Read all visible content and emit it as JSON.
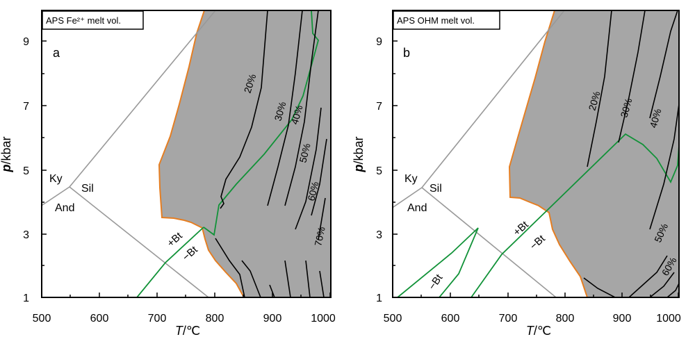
{
  "chart_data": [
    {
      "type": "line",
      "title": "APS Fe²⁺ melt vol.",
      "panel_letter": "a",
      "xlabel_symbol": "T",
      "xlabel_unit": "/℃",
      "ylabel_symbol": "p",
      "ylabel_unit": "/kbar",
      "xlim": [
        500,
        1000
      ],
      "ylim": [
        1,
        10
      ],
      "x_ticks": [
        "500",
        "600",
        "700",
        "800",
        "900",
        "1000"
      ],
      "y_ticks": [
        "1",
        "3",
        "5",
        "7",
        "9"
      ],
      "melt_field_color": "#a6a6a6",
      "solidus_color": "#e57e22",
      "biotite_line_color": "#119238",
      "aluminosilicate_color": "#999999",
      "contour_color": "#000000",
      "phase_labels": [
        "Ky",
        "Sil",
        "And"
      ],
      "biotite_labels": [
        "+Bt",
        "−Bt"
      ],
      "contour_labels": [
        "20%",
        "30%",
        "40%",
        "50%",
        "60%",
        "70%"
      ],
      "series": [
        {
          "points": [
            [
              500,
              3.8
            ],
            [
              550,
              4.4
            ]
          ]
        },
        {
          "points": [
            [
              550,
              4.4
            ],
            [
              790,
              1.0
            ]
          ]
        },
        {
          "points": [
            [
              550,
              4.4
            ],
            [
              795,
              10.0
            ]
          ]
        },
        {
          "points": [
            [
              780,
              10.0
            ],
            [
              770,
              9.3
            ],
            [
              760,
              8.2
            ],
            [
              745,
              7.1
            ],
            [
              730,
              6.0
            ],
            [
              710,
              5.15
            ],
            [
              710,
              4.5
            ],
            [
              712,
              3.5
            ],
            [
              730,
              3.5
            ],
            [
              750,
              3.45
            ],
            [
              765,
              3.35
            ],
            [
              780,
              3.15
            ],
            [
              785,
              2.8
            ],
            [
              790,
              2.4
            ],
            [
              800,
              2.0
            ],
            [
              815,
              1.6
            ],
            [
              830,
              1.25
            ],
            [
              840,
              1.0
            ]
          ]
        },
        {
          "points": [
            [
              665,
              1.0
            ],
            [
              710,
              2.1
            ],
            [
              780,
              3.2
            ]
          ]
        },
        {
          "points": [
            [
              780,
              3.2
            ],
            [
              800,
              2.95
            ],
            [
              800,
              3.8
            ],
            [
              840,
              5.0
            ],
            [
              900,
              6.2
            ],
            [
              950,
              7.5
            ],
            [
              958,
              8.8
            ],
            [
              980,
              9.0
            ],
            [
              975,
              9.3
            ],
            [
              965,
              10.0
            ]
          ]
        },
        {
          "points": [
            [
              800,
              4.0
            ],
            [
              805,
              3.5
            ],
            [
              800,
              2.8
            ],
            [
              810,
              2.0
            ],
            [
              830,
              1.4
            ],
            [
              850,
              1.0
            ]
          ]
        },
        {
          "points": [
            [
              812,
              3.8
            ],
            [
              840,
              5.5
            ],
            [
              858,
              7.3
            ],
            [
              880,
              10.0
            ]
          ]
        },
        {
          "points": [
            [
              852,
              1.6
            ],
            [
              864,
              1.3
            ],
            [
              880,
              1.0
            ]
          ]
        },
        {
          "points": [
            [
              872,
              3.9
            ],
            [
              900,
              6.1
            ],
            [
              920,
              7.9
            ],
            [
              940,
              10.0
            ]
          ]
        },
        {
          "points": [
            [
              875,
              1.7
            ],
            [
              895,
              1.3
            ],
            [
              905,
              1.0
            ]
          ]
        },
        {
          "points": [
            [
              902,
              3.9
            ],
            [
              930,
              6.1
            ],
            [
              945,
              8.3
            ],
            [
              960,
              10.0
            ]
          ]
        },
        {
          "points": [
            [
              920,
              1.2
            ],
            [
              920,
              1.0
            ]
          ]
        },
        {
          "points": [
            [
              920,
              3.2
            ],
            [
              940,
              4.5
            ],
            [
              958,
              7.4
            ]
          ]
        },
        {
          "points": [
            [
              932,
              1.6
            ],
            [
              945,
              1.0
            ]
          ]
        },
        {
          "points": [
            [
              950,
              2.4
            ],
            [
              968,
              4.6
            ],
            [
              980,
              7.3
            ]
          ]
        },
        {
          "points": [
            [
              962,
              1.6
            ],
            [
              968,
              1.0
            ]
          ]
        },
        {
          "points": [
            [
              970,
              1.9
            ],
            [
              985,
              4.2
            ]
          ]
        },
        {
          "points": [
            [
              980,
              1.4
            ],
            [
              988,
              1.0
            ]
          ]
        }
      ]
    },
    {
      "type": "line",
      "title": "APS OHM melt vol.",
      "panel_letter": "b",
      "xlabel_symbol": "T",
      "xlabel_unit": "/℃",
      "ylabel_symbol": "p",
      "ylabel_unit": "/kbar",
      "xlim": [
        500,
        1000
      ],
      "ylim": [
        1,
        10
      ],
      "x_ticks": [
        "500",
        "600",
        "700",
        "800",
        "900",
        "1000"
      ],
      "y_ticks": [
        "1",
        "3",
        "5",
        "7",
        "9"
      ],
      "melt_field_color": "#a6a6a6",
      "solidus_color": "#e57e22",
      "biotite_line_color": "#119238",
      "aluminosilicate_color": "#999999",
      "contour_color": "#000000",
      "phase_labels": [
        "Ky",
        "Sil",
        "And"
      ],
      "biotite_labels": [
        "+Bt",
        "−Bt",
        "−Bt"
      ],
      "contour_labels": [
        "20%",
        "30%",
        "40%",
        "50%",
        "60%"
      ],
      "series": [
        {
          "points": [
            [
              500,
              3.8
            ],
            [
              550,
              4.4
            ]
          ]
        },
        {
          "points": [
            [
              550,
              4.4
            ],
            [
              790,
              1.0
            ]
          ]
        },
        {
          "points": [
            [
              550,
              4.4
            ],
            [
              790,
              10.0
            ]
          ]
        },
        {
          "points": [
            [
              785,
              10.0
            ],
            [
              775,
              9.3
            ],
            [
              760,
              8.2
            ],
            [
              740,
              6.9
            ],
            [
              728,
              6.0
            ],
            [
              705,
              5.15
            ],
            [
              705,
              4.2
            ],
            [
              715,
              4.2
            ],
            [
              735,
              4.1
            ],
            [
              760,
              3.9
            ],
            [
              775,
              3.6
            ],
            [
              785,
              3.0
            ],
            [
              795,
              2.5
            ],
            [
              810,
              2.0
            ],
            [
              825,
              1.5
            ],
            [
              840,
              1.0
            ]
          ]
        },
        {
          "points": [
            [
              515,
              1.0
            ],
            [
              610,
              2.3
            ],
            [
              655,
              3.2
            ],
            [
              595,
              1.3
            ],
            [
              580,
              1.0
            ]
          ]
        },
        {
          "points": [
            [
              640,
              1.0
            ],
            [
              695,
              2.3
            ],
            [
              780,
              3.8
            ],
            [
              900,
              6.1
            ],
            [
              930,
              5.8
            ],
            [
              955,
              5.3
            ],
            [
              980,
              4.7
            ],
            [
              990,
              5.5
            ],
            [
              1000,
              5.8
            ]
          ]
        },
        {
          "points": [
            [
              840,
              1.0
            ],
            [
              860,
              1.3
            ],
            [
              880,
              1.0
            ]
          ]
        },
        {
          "points": [
            [
              842,
              5.0
            ],
            [
              860,
              7.1
            ],
            [
              878,
              10.0
            ]
          ]
        },
        {
          "points": [
            [
              892,
              5.5
            ],
            [
              910,
              7.8
            ],
            [
              930,
              10.0
            ]
          ]
        },
        {
          "points": [
            [
              945,
              6.5
            ],
            [
              960,
              8.3
            ],
            [
              975,
              10.0
            ]
          ]
        },
        {
          "points": [
            [
              935,
              2.3
            ],
            [
              955,
              3.8
            ],
            [
              980,
              6.8
            ],
            [
              990,
              8.6
            ]
          ]
        },
        {
          "points": [
            [
              905,
              1.0
            ],
            [
              940,
              1.6
            ],
            [
              960,
              2.5
            ]
          ]
        },
        {
          "points": [
            [
              935,
              1.0
            ],
            [
              960,
              1.5
            ],
            [
              975,
              2.6
            ]
          ]
        },
        {
          "points": [
            [
              960,
              1.0
            ],
            [
              975,
              1.4
            ],
            [
              985,
              2.0
            ]
          ]
        }
      ]
    }
  ]
}
